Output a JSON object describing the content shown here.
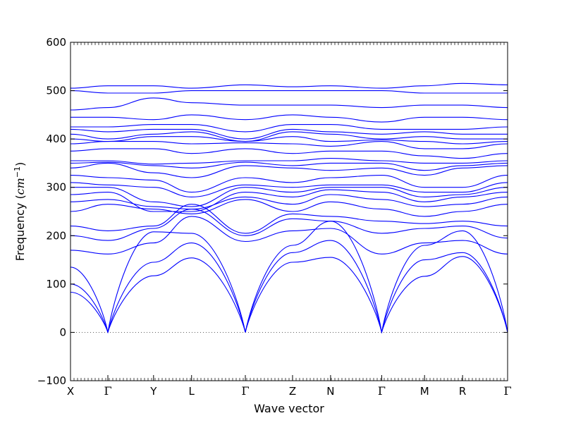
{
  "chart_data": {
    "type": "line",
    "xlabel": "Wave vector",
    "ylabel": {
      "text": "Frequency (",
      "unit": "cm",
      "exponent": "−1",
      "close": ")"
    },
    "ylim": [
      -100,
      600
    ],
    "y_ticks": [
      "600",
      "500",
      "400",
      "300",
      "200",
      "100",
      "0",
      "−100"
    ],
    "y_tick_values": [
      600,
      500,
      400,
      300,
      200,
      100,
      0,
      -100
    ],
    "k_path": [
      "X",
      "Γ",
      "Y",
      "L",
      "Γ",
      "Z",
      "N",
      "Γ",
      "M",
      "R",
      "Γ"
    ],
    "k_path_positions": [
      0,
      0.0855,
      0.19,
      0.277,
      0.4,
      0.508,
      0.595,
      0.712,
      0.81,
      0.897,
      1.0
    ],
    "zero_line": true,
    "line_color": "#0000ff",
    "series": [
      {
        "values": [
          83,
          0,
          117,
          154,
          0,
          145,
          155,
          0,
          116,
          157,
          0
        ]
      },
      {
        "values": [
          100,
          0,
          145,
          185,
          0,
          165,
          190,
          0,
          150,
          165,
          0
        ]
      },
      {
        "values": [
          135,
          0,
          208,
          205,
          0,
          180,
          230,
          0,
          180,
          210,
          0
        ]
      },
      {
        "values": [
          170,
          162,
          185,
          240,
          188,
          210,
          215,
          162,
          185,
          190,
          162
        ]
      },
      {
        "values": [
          200,
          190,
          215,
          255,
          200,
          235,
          230,
          205,
          215,
          220,
          195
        ]
      },
      {
        "values": [
          220,
          210,
          220,
          265,
          205,
          245,
          240,
          230,
          225,
          230,
          220
        ]
      },
      {
        "values": [
          250,
          265,
          255,
          245,
          275,
          250,
          270,
          255,
          240,
          250,
          265
        ]
      },
      {
        "values": [
          270,
          275,
          260,
          255,
          280,
          265,
          285,
          275,
          260,
          265,
          280
        ]
      },
      {
        "values": [
          285,
          290,
          250,
          250,
          290,
          280,
          295,
          290,
          270,
          280,
          290
        ]
      },
      {
        "values": [
          300,
          300,
          270,
          260,
          300,
          290,
          300,
          300,
          280,
          285,
          300
        ]
      },
      {
        "values": [
          310,
          305,
          300,
          280,
          305,
          300,
          305,
          305,
          290,
          290,
          310
        ]
      },
      {
        "values": [
          325,
          320,
          315,
          290,
          320,
          310,
          320,
          325,
          300,
          300,
          325
        ]
      },
      {
        "values": [
          340,
          350,
          330,
          320,
          345,
          340,
          335,
          340,
          325,
          340,
          345
        ]
      },
      {
        "values": [
          350,
          352,
          345,
          340,
          352,
          345,
          350,
          350,
          335,
          345,
          350
        ]
      },
      {
        "values": [
          355,
          355,
          348,
          350,
          355,
          355,
          360,
          355,
          350,
          350,
          355
        ]
      },
      {
        "values": [
          375,
          380,
          380,
          370,
          380,
          370,
          375,
          375,
          365,
          360,
          370
        ]
      },
      {
        "values": [
          390,
          395,
          395,
          390,
          392,
          390,
          385,
          395,
          380,
          380,
          390
        ]
      },
      {
        "values": [
          400,
          395,
          405,
          405,
          395,
          405,
          395,
          398,
          395,
          390,
          395
        ]
      },
      {
        "values": [
          410,
          400,
          410,
          415,
          395,
          415,
          410,
          400,
          405,
          400,
          400
        ]
      },
      {
        "values": [
          420,
          415,
          420,
          420,
          400,
          420,
          415,
          410,
          415,
          410,
          410
        ]
      },
      {
        "values": [
          425,
          425,
          430,
          430,
          415,
          430,
          430,
          420,
          420,
          420,
          425
        ]
      },
      {
        "values": [
          445,
          445,
          440,
          450,
          440,
          450,
          445,
          435,
          445,
          445,
          440
        ]
      },
      {
        "values": [
          460,
          465,
          485,
          475,
          470,
          470,
          470,
          465,
          470,
          470,
          465
        ]
      },
      {
        "values": [
          500,
          495,
          495,
          500,
          500,
          500,
          500,
          500,
          495,
          495,
          495
        ]
      },
      {
        "values": [
          505,
          510,
          510,
          505,
          512,
          508,
          510,
          505,
          510,
          515,
          512
        ]
      }
    ]
  }
}
